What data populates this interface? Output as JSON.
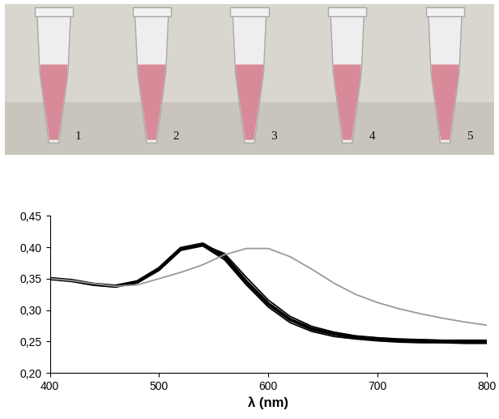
{
  "tubes": {
    "labels": [
      "1",
      "2",
      "3",
      "4",
      "5"
    ]
  },
  "chart_data": {
    "type": "line",
    "x_label": "λ (nm)",
    "x": [
      400,
      420,
      440,
      460,
      480,
      500,
      520,
      540,
      560,
      580,
      600,
      620,
      640,
      660,
      680,
      700,
      720,
      740,
      760,
      780,
      800
    ],
    "series": [
      {
        "color": "#000000",
        "values": [
          0.35,
          0.347,
          0.341,
          0.338,
          0.345,
          0.366,
          0.398,
          0.405,
          0.385,
          0.345,
          0.31,
          0.285,
          0.27,
          0.262,
          0.257,
          0.254,
          0.252,
          0.251,
          0.25,
          0.25,
          0.25
        ]
      },
      {
        "color": "#000000",
        "values": [
          0.35,
          0.346,
          0.34,
          0.337,
          0.343,
          0.363,
          0.395,
          0.402,
          0.38,
          0.34,
          0.305,
          0.28,
          0.266,
          0.258,
          0.254,
          0.251,
          0.249,
          0.248,
          0.248,
          0.247,
          0.247
        ]
      },
      {
        "color": "#000000",
        "values": [
          0.351,
          0.347,
          0.341,
          0.338,
          0.344,
          0.364,
          0.396,
          0.404,
          0.39,
          0.352,
          0.316,
          0.29,
          0.274,
          0.265,
          0.259,
          0.256,
          0.254,
          0.253,
          0.252,
          0.252,
          0.252
        ]
      },
      {
        "color": "#999999",
        "values": [
          0.35,
          0.347,
          0.342,
          0.338,
          0.34,
          0.35,
          0.36,
          0.372,
          0.388,
          0.398,
          0.398,
          0.385,
          0.365,
          0.343,
          0.325,
          0.312,
          0.302,
          0.294,
          0.287,
          0.281,
          0.276
        ]
      }
    ],
    "xlim": [
      400,
      800
    ],
    "xticks": [
      400,
      500,
      600,
      700,
      800
    ],
    "ylim": [
      0.2,
      0.45
    ],
    "yticks": [
      {
        "value": 0.2,
        "label": "0,20"
      },
      {
        "value": 0.25,
        "label": "0,25"
      },
      {
        "value": 0.3,
        "label": "0,30"
      },
      {
        "value": 0.35,
        "label": "0,35"
      },
      {
        "value": 0.4,
        "label": "0,40"
      },
      {
        "value": 0.45,
        "label": "0,45"
      }
    ],
    "grid": false
  }
}
